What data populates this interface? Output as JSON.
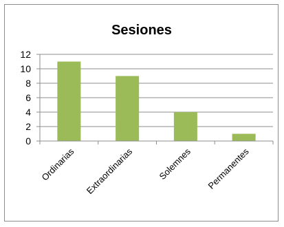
{
  "chart_data": {
    "type": "bar",
    "title": "Sesiones",
    "categories": [
      "Ordinarias",
      "Extraordinarias",
      "Solemnes",
      "Permanentes"
    ],
    "values": [
      11,
      9,
      4,
      1
    ],
    "ylim": [
      0,
      12
    ],
    "yticks": [
      0,
      2,
      4,
      6,
      8,
      10,
      12
    ],
    "grid": true,
    "legend": "none",
    "bar_color": "#9bbb59",
    "grid_color": "#8c8c8c",
    "axis_color": "#8c8c8c"
  }
}
